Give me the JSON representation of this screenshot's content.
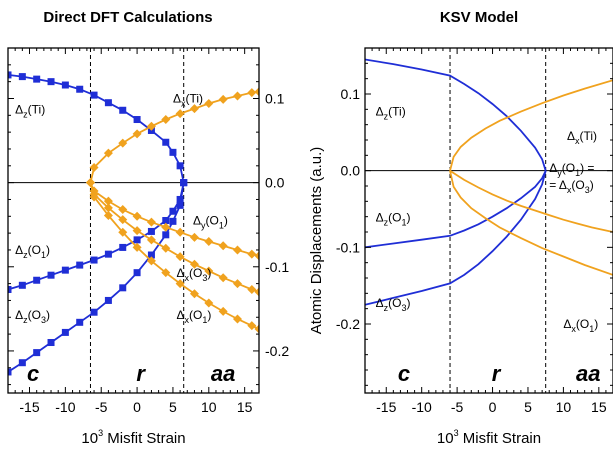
{
  "colors": {
    "blue": "#1f2ed6",
    "orange": "#f0a21e"
  },
  "chart_data": [
    {
      "type": "line",
      "title": "Direct DFT Calculations",
      "xlabel": "10^3 Misfit Strain",
      "xlabel_parts": {
        "base": "10",
        "sup": "3",
        "rest": " Misfit Strain"
      },
      "ylabel": "",
      "xlim": [
        -18,
        17
      ],
      "ylim": [
        -0.25,
        0.16
      ],
      "x_ticks": [
        -15,
        -10,
        -5,
        0,
        5,
        10,
        15
      ],
      "y_ticks": [
        0.1,
        0.0,
        -0.1,
        -0.2
      ],
      "y_tick_labels": [
        "0.1",
        "0.0",
        "-0.1",
        "-0.2"
      ],
      "y_axis_side": "right",
      "zero_line": true,
      "phase_boundaries": [
        -6.5,
        6.5
      ],
      "regions": [
        {
          "label": "c",
          "x": -14.5
        },
        {
          "label": "r",
          "x": 0.5
        },
        {
          "label": "aa",
          "x": 12.0
        }
      ],
      "series": [
        {
          "id": "dz_ti",
          "color": "blue",
          "marker": "square",
          "x": [
            -18,
            -16,
            -14,
            -12,
            -10,
            -8,
            -6,
            -4,
            -2,
            0,
            2,
            4,
            5,
            6,
            6.5
          ],
          "y": [
            0.128,
            0.126,
            0.123,
            0.12,
            0.116,
            0.111,
            0.104,
            0.095,
            0.086,
            0.075,
            0.062,
            0.048,
            0.036,
            0.02,
            0.0
          ]
        },
        {
          "id": "dz_o1",
          "color": "blue",
          "marker": "square",
          "x": [
            -18,
            -16,
            -14,
            -12,
            -10,
            -8,
            -6,
            -4,
            -2,
            0,
            2,
            4,
            5,
            6,
            6.5
          ],
          "y": [
            -0.127,
            -0.122,
            -0.116,
            -0.11,
            -0.104,
            -0.098,
            -0.092,
            -0.085,
            -0.077,
            -0.068,
            -0.058,
            -0.045,
            -0.034,
            -0.02,
            0.0
          ]
        },
        {
          "id": "dz_o3",
          "color": "blue",
          "marker": "square",
          "x": [
            -18,
            -16,
            -14,
            -12,
            -10,
            -8,
            -6,
            -4,
            -2,
            0,
            2,
            4,
            5,
            6,
            6.5
          ],
          "y": [
            -0.225,
            -0.214,
            -0.202,
            -0.19,
            -0.178,
            -0.166,
            -0.154,
            -0.14,
            -0.125,
            -0.107,
            -0.086,
            -0.062,
            -0.046,
            -0.027,
            0.0
          ]
        },
        {
          "id": "dx_ti",
          "color": "orange",
          "marker": "diamond",
          "x": [
            -6.5,
            -6,
            -4,
            -2,
            0,
            2,
            4,
            6,
            8,
            10,
            12,
            14,
            16,
            17
          ],
          "y": [
            0.0,
            0.018,
            0.035,
            0.047,
            0.058,
            0.067,
            0.075,
            0.082,
            0.088,
            0.094,
            0.099,
            0.103,
            0.107,
            0.108
          ]
        },
        {
          "id": "dy_o1",
          "color": "orange",
          "marker": "diamond",
          "x": [
            -6.5,
            -6,
            -4,
            -2,
            0,
            2,
            4,
            6,
            8,
            10,
            12,
            14,
            16,
            17
          ],
          "y": [
            0.0,
            -0.01,
            -0.022,
            -0.032,
            -0.04,
            -0.047,
            -0.053,
            -0.059,
            -0.065,
            -0.07,
            -0.075,
            -0.08,
            -0.085,
            -0.087
          ]
        },
        {
          "id": "dx_o3",
          "color": "orange",
          "marker": "diamond",
          "x": [
            -6.5,
            -6,
            -4,
            -2,
            0,
            2,
            4,
            6,
            8,
            10,
            12,
            14,
            16,
            17
          ],
          "y": [
            0.0,
            -0.014,
            -0.03,
            -0.044,
            -0.057,
            -0.068,
            -0.078,
            -0.088,
            -0.097,
            -0.105,
            -0.113,
            -0.12,
            -0.127,
            -0.13
          ]
        },
        {
          "id": "dx_o1",
          "color": "orange",
          "marker": "diamond",
          "x": [
            -6.5,
            -6,
            -4,
            -2,
            0,
            2,
            4,
            6,
            8,
            10,
            12,
            14,
            16,
            17
          ],
          "y": [
            0.0,
            -0.017,
            -0.039,
            -0.059,
            -0.077,
            -0.093,
            -0.107,
            -0.12,
            -0.132,
            -0.143,
            -0.153,
            -0.162,
            -0.17,
            -0.174
          ]
        }
      ],
      "annotations": [
        {
          "id": "dz_ti",
          "base": "Δ",
          "sub": "z",
          "rest": "(Ti)",
          "x": -17.0,
          "y": 0.082
        },
        {
          "id": "dx_ti",
          "base": "Δ",
          "sub": "x",
          "rest": "(Ti)",
          "x": 5.0,
          "y": 0.095
        },
        {
          "id": "dy_o1",
          "base": "Δ",
          "sub": "y",
          "rest": "(O1)",
          "x": 7.8,
          "y": -0.05
        },
        {
          "id": "dz_o1",
          "base": "Δ",
          "sub": "z",
          "rest": "(O1)",
          "x": -17.0,
          "y": -0.085
        },
        {
          "id": "dx_o3",
          "base": "Δ",
          "sub": "x",
          "rest": "(O3)",
          "x": 5.5,
          "y": -0.112
        },
        {
          "id": "dz_o3",
          "base": "Δ",
          "sub": "z",
          "rest": "(O3)",
          "x": -17.0,
          "y": -0.162
        },
        {
          "id": "dx_o1",
          "base": "Δ",
          "sub": "x",
          "rest": "(O1)",
          "x": 5.5,
          "y": -0.162
        }
      ]
    },
    {
      "type": "line",
      "title": "KSV Model",
      "xlabel": "10^3 Misfit Strain",
      "xlabel_parts": {
        "base": "10",
        "sup": "3",
        "rest": " Misfit Strain"
      },
      "ylabel": "Atomic Displacements (a.u.)",
      "xlim": [
        -18,
        17
      ],
      "ylim": [
        -0.29,
        0.16
      ],
      "x_ticks": [
        -15,
        -10,
        -5,
        0,
        5,
        10,
        15
      ],
      "y_ticks": [
        0.1,
        0.0,
        -0.1,
        -0.2
      ],
      "y_tick_labels": [
        "0.1",
        "0.0",
        "-0.1",
        "-0.2"
      ],
      "y_axis_side": "left",
      "zero_line": true,
      "phase_boundaries": [
        -6,
        7.5
      ],
      "regions": [
        {
          "label": "c",
          "x": -12.5
        },
        {
          "label": "r",
          "x": 0.5
        },
        {
          "label": "aa",
          "x": 13.5
        }
      ],
      "series": [
        {
          "id": "dz_ti",
          "color": "blue",
          "x": [
            -18,
            -14,
            -10,
            -6,
            -4,
            -2,
            0,
            2,
            4,
            6,
            7,
            7.5
          ],
          "y": [
            0.145,
            0.139,
            0.132,
            0.124,
            0.113,
            0.101,
            0.087,
            0.071,
            0.052,
            0.03,
            0.015,
            0.0
          ]
        },
        {
          "id": "dz_o1",
          "color": "blue",
          "x": [
            -18,
            -14,
            -10,
            -6,
            -4,
            -2,
            0,
            2,
            4,
            6,
            7,
            7.5
          ],
          "y": [
            -0.1,
            -0.095,
            -0.09,
            -0.085,
            -0.078,
            -0.07,
            -0.06,
            -0.049,
            -0.036,
            -0.021,
            -0.01,
            0.0
          ]
        },
        {
          "id": "dz_o3",
          "color": "blue",
          "x": [
            -18,
            -14,
            -10,
            -6,
            -4,
            -2,
            0,
            2,
            4,
            6,
            7,
            7.5
          ],
          "y": [
            -0.175,
            -0.166,
            -0.157,
            -0.147,
            -0.136,
            -0.122,
            -0.105,
            -0.086,
            -0.064,
            -0.037,
            -0.018,
            0.0
          ]
        },
        {
          "id": "dx_ti",
          "color": "orange",
          "x": [
            -6,
            -5.5,
            -4.5,
            -3,
            -1,
            1,
            4,
            7,
            10,
            13,
            17
          ],
          "y": [
            0.0,
            0.018,
            0.031,
            0.043,
            0.055,
            0.065,
            0.077,
            0.088,
            0.098,
            0.107,
            0.118
          ]
        },
        {
          "id": "dx_o1",
          "color": "orange",
          "x": [
            -6,
            -5.5,
            -4.5,
            -3,
            -1,
            1,
            4,
            7,
            10,
            13,
            17
          ],
          "y": [
            0.0,
            -0.021,
            -0.035,
            -0.049,
            -0.062,
            -0.074,
            -0.088,
            -0.101,
            -0.112,
            -0.123,
            -0.136
          ]
        },
        {
          "id": "dy_o1",
          "color": "orange",
          "x": [
            -6,
            -4,
            -2,
            0,
            2,
            4,
            6,
            8,
            10,
            12,
            14,
            17
          ],
          "y": [
            0.0,
            -0.012,
            -0.022,
            -0.031,
            -0.039,
            -0.046,
            -0.052,
            -0.058,
            -0.064,
            -0.069,
            -0.074,
            -0.08
          ]
        }
      ],
      "annotations": [
        {
          "id": "dz_ti",
          "base": "Δ",
          "sub": "z",
          "rest": "(Ti)",
          "x": -16.5,
          "y": 0.072
        },
        {
          "id": "dx_ti",
          "base": "Δ",
          "sub": "x",
          "rest": "(Ti)",
          "x": 10.5,
          "y": 0.04
        },
        {
          "id": "dy_o1",
          "base": "Δ",
          "sub": "y",
          "rest": "(O1) =",
          "x": 8.0,
          "y": -0.002
        },
        {
          "id": "dx_o3",
          "base": "",
          "sub": "",
          "rest": "= Δx(O3)",
          "x": 8.0,
          "y": -0.024
        },
        {
          "id": "dz_o1",
          "base": "Δ",
          "sub": "z",
          "rest": "(O1)",
          "x": -16.5,
          "y": -0.066
        },
        {
          "id": "dz_o3",
          "base": "Δ",
          "sub": "z",
          "rest": "(O3)",
          "x": -16.5,
          "y": -0.178
        },
        {
          "id": "dx_o1",
          "base": "Δ",
          "sub": "x",
          "rest": "(O1)",
          "x": 10.0,
          "y": -0.205
        }
      ]
    }
  ]
}
